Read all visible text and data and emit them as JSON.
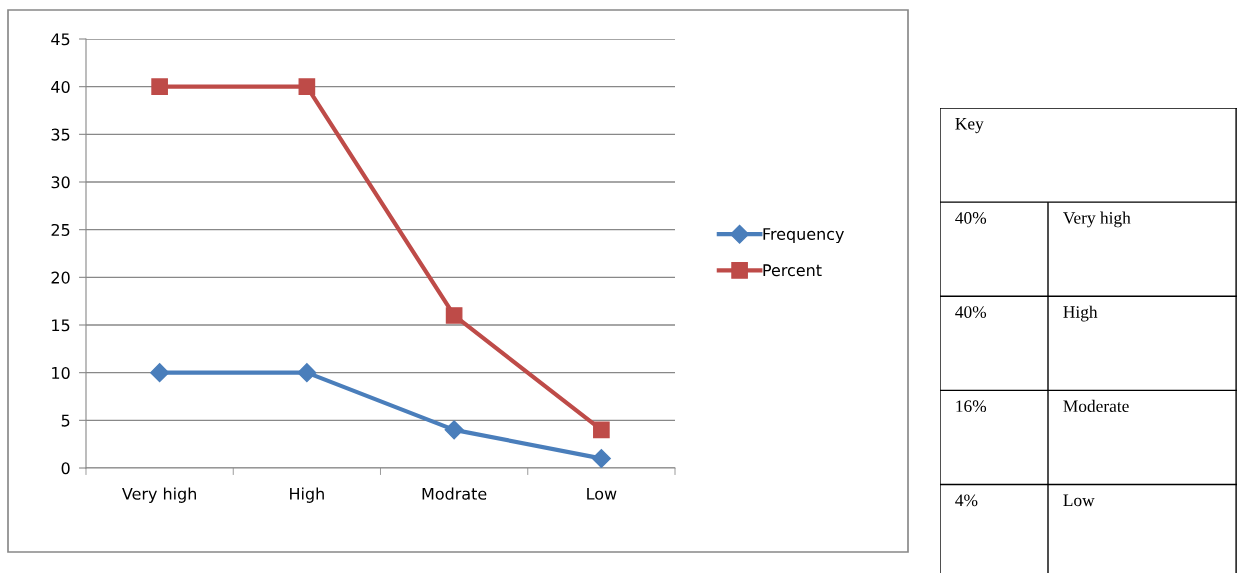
{
  "chart_data": [
    {
      "type": "line",
      "categories": [
        "Very high",
        "High",
        "Modrate",
        "Low"
      ],
      "series": [
        {
          "name": "Frequency",
          "color": "#4a7ebb",
          "marker": "diamond",
          "values": [
            10,
            10,
            4,
            1
          ]
        },
        {
          "name": "Percent",
          "color": "#be4b48",
          "marker": "square",
          "values": [
            40,
            40,
            16,
            4
          ]
        }
      ],
      "ylim": [
        0,
        45
      ],
      "yticks": [
        0,
        5,
        10,
        15,
        20,
        25,
        30,
        35,
        40,
        45
      ],
      "grid": "y",
      "legend": "right",
      "line_style": "solid"
    },
    {
      "type": "other",
      "title": "Key",
      "annotations": [
        "40%",
        "Very high",
        "40%",
        "High",
        "16%",
        "Moderate",
        "4%",
        "Low"
      ]
    }
  ]
}
